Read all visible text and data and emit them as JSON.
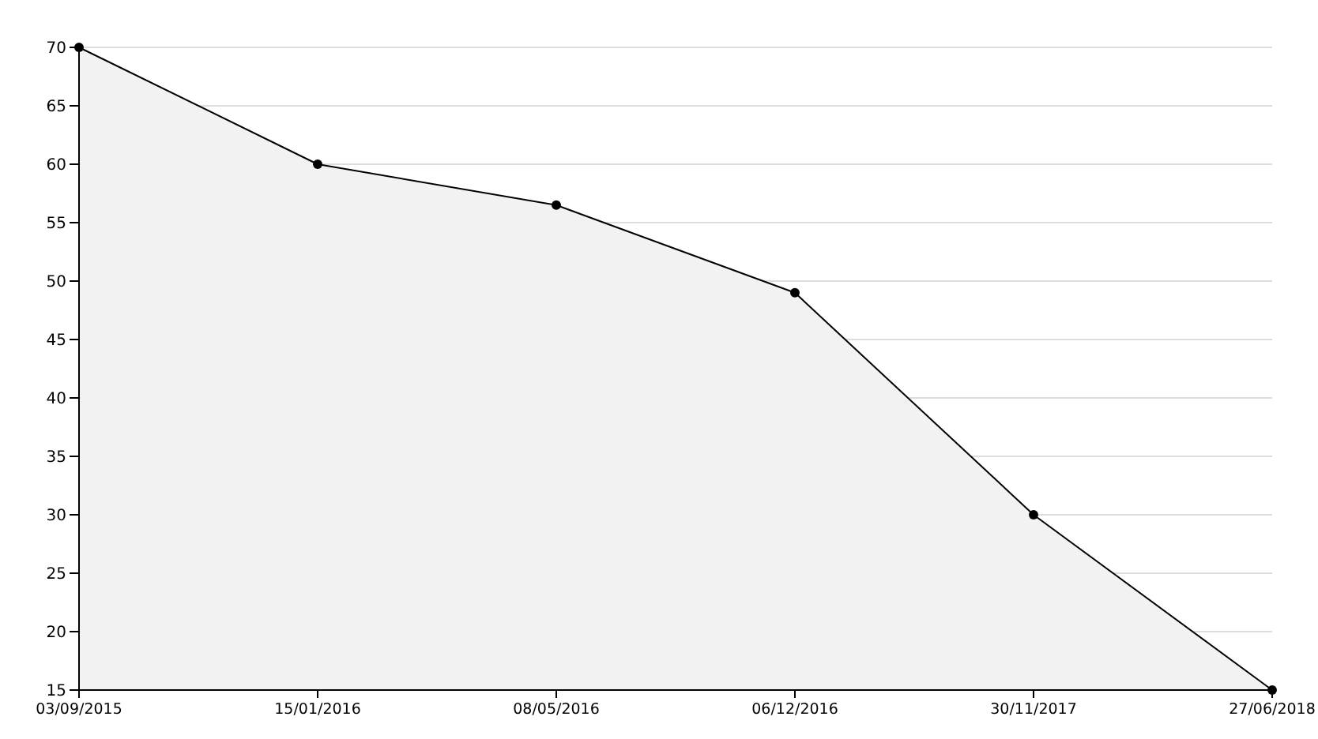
{
  "chart_data": {
    "type": "area",
    "categories": [
      "03/09/2015",
      "15/01/2016",
      "08/05/2016",
      "06/12/2016",
      "30/11/2017",
      "27/06/2018"
    ],
    "series": [
      {
        "color": "#000000",
        "values": [
          70,
          60,
          56.5,
          49,
          30,
          15
        ]
      }
    ],
    "ylim": [
      15,
      70
    ],
    "yticks": [
      15,
      20,
      25,
      30,
      35,
      40,
      45,
      50,
      55,
      60,
      65,
      70
    ],
    "grid": "y",
    "marker": "circle",
    "line_style": "solid"
  }
}
